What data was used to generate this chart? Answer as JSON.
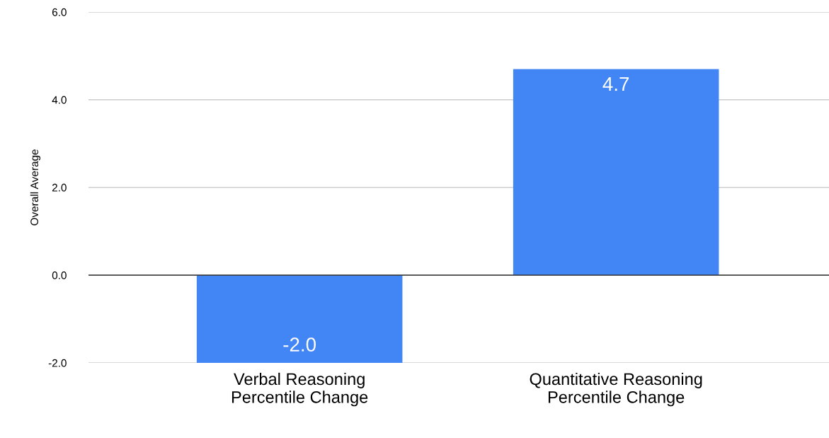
{
  "chart_data": {
    "type": "bar",
    "ylabel": "Overall Average",
    "categories": [
      "Verbal Reasoning\nPercentile Change",
      "Quantitative Reasoning\nPercentile Change"
    ],
    "values": [
      -2.0,
      4.7
    ],
    "color": "#4285f4",
    "ylim": [
      -2.0,
      6.0
    ],
    "yticks": [
      {
        "value": -2.0,
        "label": "-2.0"
      },
      {
        "value": 0.0,
        "label": "0.0"
      },
      {
        "value": 2.0,
        "label": "2.0"
      },
      {
        "value": 4.0,
        "label": "4.0"
      },
      {
        "value": 6.0,
        "label": "6.0"
      }
    ],
    "grid": "y",
    "value_labels": [
      "-2.0",
      "4.7"
    ]
  }
}
